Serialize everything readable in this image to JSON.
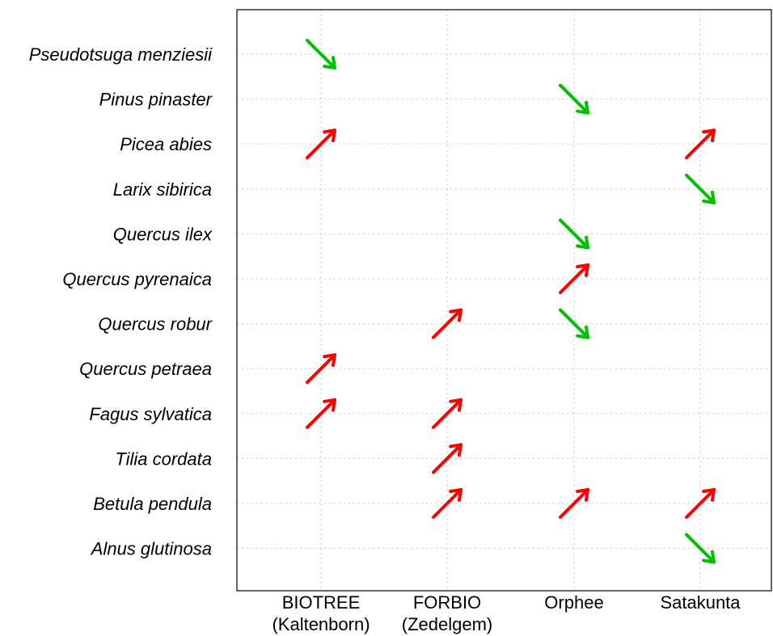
{
  "chart_data": {
    "type": "scatter",
    "marker": "arrow",
    "categories_x": [
      [
        "BIOTREE",
        "(Kaltenborn)"
      ],
      [
        "FORBIO",
        "(Zedelgem)"
      ],
      [
        "Orphee"
      ],
      [
        "Satakunta"
      ]
    ],
    "categories_y": [
      "Pseudotsuga menziesii",
      "Pinus pinaster",
      "Picea abies",
      "Larix sibirica",
      "Quercus ilex",
      "Quercus pyrenaica",
      "Quercus robur",
      "Quercus petraea",
      "Fagus sylvatica",
      "Tilia cordata",
      "Betula pendula",
      "Alnus glutinosa"
    ],
    "colors": {
      "up": "#ff0000",
      "down": "#00c000"
    },
    "points": [
      {
        "x": 0,
        "y": 0,
        "direction": "down"
      },
      {
        "x": 2,
        "y": 1,
        "direction": "down"
      },
      {
        "x": 0,
        "y": 2,
        "direction": "up"
      },
      {
        "x": 3,
        "y": 2,
        "direction": "up"
      },
      {
        "x": 3,
        "y": 3,
        "direction": "down"
      },
      {
        "x": 2,
        "y": 4,
        "direction": "down"
      },
      {
        "x": 2,
        "y": 5,
        "direction": "up"
      },
      {
        "x": 1,
        "y": 6,
        "direction": "up"
      },
      {
        "x": 2,
        "y": 6,
        "direction": "down"
      },
      {
        "x": 0,
        "y": 7,
        "direction": "up"
      },
      {
        "x": 0,
        "y": 8,
        "direction": "up"
      },
      {
        "x": 1,
        "y": 8,
        "direction": "up"
      },
      {
        "x": 1,
        "y": 9,
        "direction": "up"
      },
      {
        "x": 1,
        "y": 10,
        "direction": "up"
      },
      {
        "x": 2,
        "y": 10,
        "direction": "up"
      },
      {
        "x": 3,
        "y": 10,
        "direction": "up"
      },
      {
        "x": 3,
        "y": 11,
        "direction": "down"
      }
    ],
    "grid": true,
    "legend": "none"
  }
}
